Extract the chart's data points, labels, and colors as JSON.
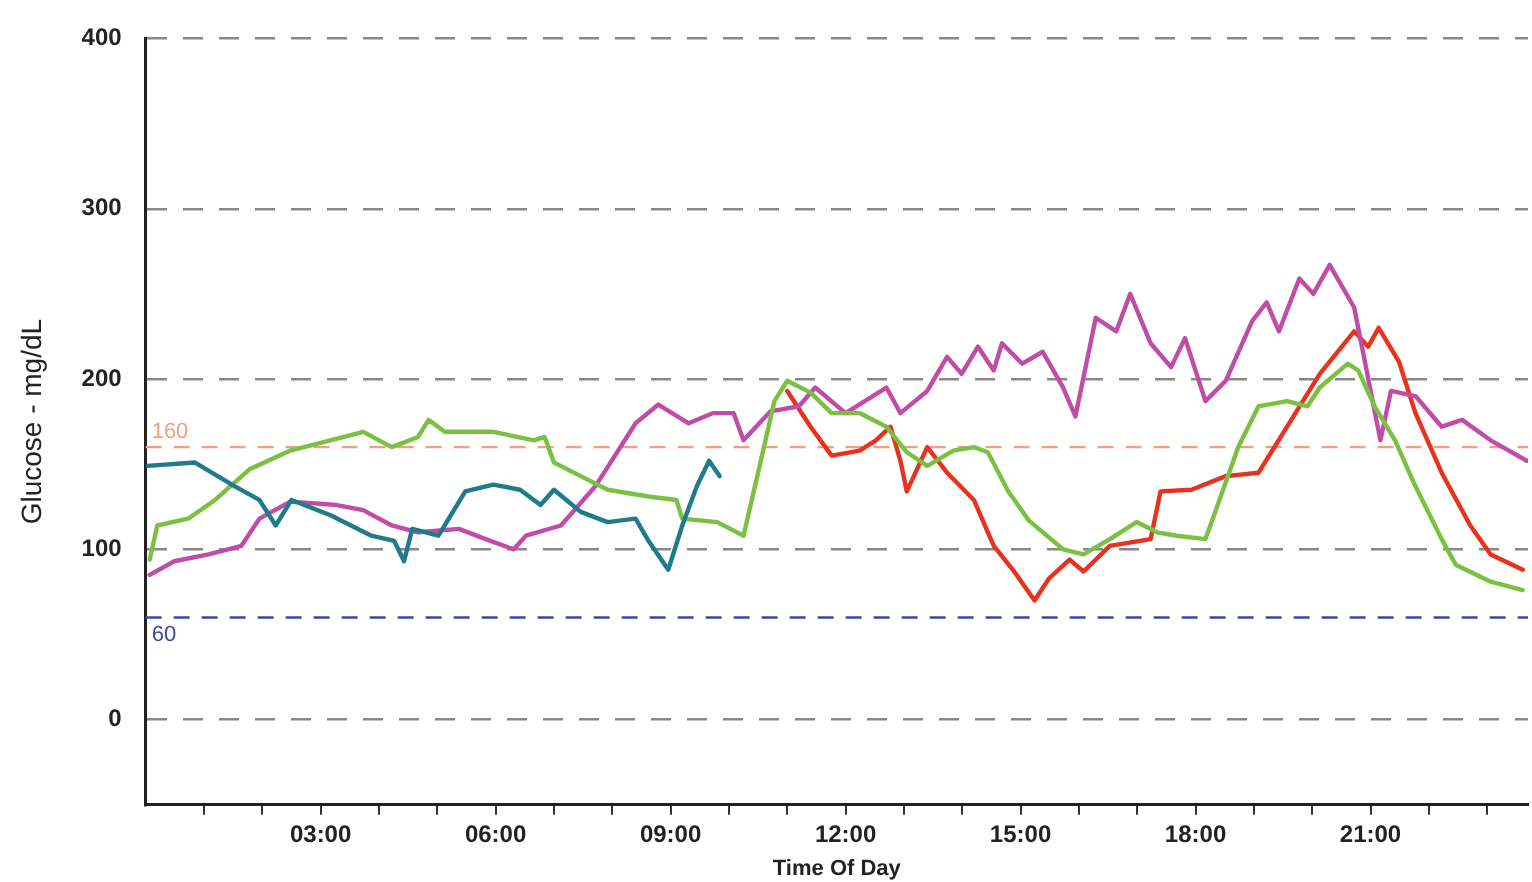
{
  "chart_data": {
    "type": "line",
    "xlabel": "Time Of Day",
    "ylabel": "Glucose - mg/dL",
    "xlim": [
      0,
      23.7
    ],
    "ylim": [
      -50,
      400
    ],
    "yticks": [
      0,
      100,
      200,
      300,
      400
    ],
    "xticks": [
      {
        "value": 1,
        "label": null
      },
      {
        "value": 2,
        "label": null
      },
      {
        "value": 3,
        "label": "03:00"
      },
      {
        "value": 4,
        "label": null
      },
      {
        "value": 5,
        "label": null
      },
      {
        "value": 6,
        "label": "06:00"
      },
      {
        "value": 7,
        "label": null
      },
      {
        "value": 8,
        "label": null
      },
      {
        "value": 9,
        "label": "09:00"
      },
      {
        "value": 10,
        "label": null
      },
      {
        "value": 11,
        "label": null
      },
      {
        "value": 12,
        "label": "12:00"
      },
      {
        "value": 13,
        "label": null
      },
      {
        "value": 14,
        "label": null
      },
      {
        "value": 15,
        "label": "15:00"
      },
      {
        "value": 16,
        "label": null
      },
      {
        "value": 17,
        "label": null
      },
      {
        "value": 18,
        "label": "18:00"
      },
      {
        "value": 19,
        "label": null
      },
      {
        "value": 20,
        "label": null
      },
      {
        "value": 21,
        "label": "21:00"
      },
      {
        "value": 22,
        "label": null
      },
      {
        "value": 23,
        "label": null
      }
    ],
    "grid": "y",
    "legend": false,
    "marker": "none",
    "line_style": "solid",
    "ref_lines": [
      {
        "axis": "y",
        "value": 160,
        "label": "160",
        "color": "#f0a080",
        "line_style": "dashed"
      },
      {
        "axis": "y",
        "value": 60,
        "label": "60",
        "color": "#3a4aa0",
        "line_style": "dashed"
      }
    ],
    "series": [
      {
        "color": "#1f7a8c",
        "x": [
          0.03,
          0.84,
          1.53,
          1.95,
          2.23,
          2.5,
          3.17,
          3.87,
          4.26,
          4.43,
          4.57,
          5.02,
          5.48,
          5.96,
          6.42,
          6.77,
          7.0,
          7.46,
          7.92,
          8.4,
          8.62,
          8.96,
          9.2,
          9.45,
          9.66,
          9.84
        ],
        "values": [
          149,
          151,
          137,
          129,
          114,
          129,
          120,
          108,
          105,
          93,
          112,
          108,
          134,
          138,
          135,
          126,
          135,
          122,
          116,
          118,
          105,
          88,
          114,
          137,
          152,
          143
        ]
      },
      {
        "color": "#7ac143",
        "x": [
          0.07,
          0.2,
          0.73,
          1.19,
          1.78,
          2.48,
          3.17,
          3.73,
          4.22,
          4.67,
          4.85,
          5.13,
          5.96,
          6.66,
          6.84,
          7.0,
          7.46,
          7.92,
          8.62,
          9.1,
          9.2,
          9.8,
          10.25,
          10.5,
          10.78,
          11.0,
          11.4,
          11.76,
          12.24,
          12.7,
          13.05,
          13.4,
          13.85,
          14.2,
          14.44,
          14.79,
          15.14,
          15.73,
          16.08,
          16.53,
          16.99,
          17.34,
          17.68,
          18.17,
          18.38,
          18.73,
          19.08,
          19.57,
          19.92,
          20.13,
          20.61,
          20.79,
          21.07,
          21.42,
          21.77,
          22.22,
          22.46,
          23.06,
          23.61
        ],
        "values": [
          94,
          114,
          118,
          129,
          147,
          158,
          164,
          169,
          160,
          166,
          176,
          169,
          169,
          164,
          166,
          151,
          143,
          135,
          131,
          129,
          118,
          116,
          108,
          145,
          187,
          199,
          192,
          180,
          180,
          172,
          157,
          149,
          158,
          160,
          157,
          134,
          117,
          100,
          97,
          106,
          116,
          110,
          108,
          106,
          126,
          160,
          184,
          187,
          184,
          195,
          209,
          205,
          184,
          164,
          137,
          106,
          91,
          81,
          76
        ]
      },
      {
        "color": "#c04ca8",
        "x": [
          0.07,
          0.49,
          1.08,
          1.64,
          1.95,
          2.48,
          3.28,
          3.73,
          4.22,
          4.67,
          5.37,
          5.83,
          6.31,
          6.52,
          7.12,
          7.71,
          8.4,
          8.79,
          9.31,
          9.73,
          10.08,
          10.25,
          10.71,
          11.2,
          11.48,
          12.0,
          12.7,
          12.94,
          13.4,
          13.74,
          13.99,
          14.27,
          14.54,
          14.68,
          15.03,
          15.38,
          15.73,
          15.94,
          16.29,
          16.64,
          16.88,
          17.23,
          17.58,
          17.82,
          18.17,
          18.52,
          18.97,
          19.22,
          19.43,
          19.78,
          20.02,
          20.3,
          20.72,
          21.17,
          21.35,
          21.77,
          22.22,
          22.57,
          23.06,
          23.68
        ],
        "values": [
          85,
          93,
          97,
          102,
          118,
          128,
          126,
          123,
          114,
          110,
          112,
          106,
          100,
          108,
          114,
          137,
          174,
          185,
          174,
          180,
          180,
          164,
          181,
          184,
          195,
          180,
          195,
          180,
          193,
          213,
          203,
          219,
          205,
          221,
          209,
          216,
          195,
          178,
          236,
          228,
          250,
          221,
          207,
          224,
          187,
          199,
          234,
          245,
          228,
          259,
          250,
          267,
          242,
          164,
          193,
          190,
          172,
          176,
          164,
          152
        ]
      },
      {
        "color": "#e8321e",
        "x": [
          11.0,
          11.4,
          11.76,
          12.24,
          12.52,
          12.77,
          12.94,
          13.05,
          13.4,
          13.74,
          14.2,
          14.54,
          14.89,
          15.24,
          15.49,
          15.84,
          16.08,
          16.53,
          17.23,
          17.4,
          17.93,
          18.52,
          19.08,
          19.57,
          20.13,
          20.72,
          20.96,
          21.14,
          21.49,
          21.77,
          22.22,
          22.71,
          23.06,
          23.61
        ],
        "values": [
          193,
          172,
          155,
          158,
          164,
          172,
          152,
          134,
          160,
          145,
          129,
          102,
          87,
          70,
          83,
          94,
          87,
          102,
          106,
          134,
          135,
          143,
          145,
          172,
          203,
          228,
          219,
          230,
          210,
          180,
          145,
          114,
          97,
          88
        ]
      }
    ]
  }
}
